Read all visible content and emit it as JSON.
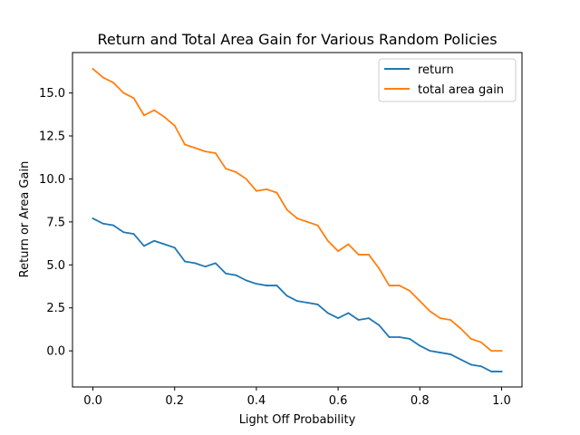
{
  "chart_data": {
    "type": "line",
    "title": "Return and Total Area Gain for Various Random Policies",
    "xlabel": "Light Off Probability",
    "ylabel": "Return or Area Gain",
    "xlim": [
      -0.05,
      1.05
    ],
    "ylim": [
      -2.1,
      17.35
    ],
    "xticks": [
      0.0,
      0.2,
      0.4,
      0.6,
      0.8,
      1.0
    ],
    "xtick_labels": [
      "0.0",
      "0.2",
      "0.4",
      "0.6",
      "0.8",
      "1.0"
    ],
    "yticks": [
      0.0,
      2.5,
      5.0,
      7.5,
      10.0,
      12.5,
      15.0
    ],
    "ytick_labels": [
      "0.0",
      "2.5",
      "5.0",
      "7.5",
      "10.0",
      "12.5",
      "15.0"
    ],
    "grid": false,
    "legend_position": "top-right",
    "x": [
      0.0,
      0.025,
      0.05,
      0.075,
      0.1,
      0.125,
      0.15,
      0.175,
      0.2,
      0.225,
      0.25,
      0.275,
      0.3,
      0.325,
      0.35,
      0.375,
      0.4,
      0.425,
      0.45,
      0.475,
      0.5,
      0.525,
      0.55,
      0.575,
      0.6,
      0.625,
      0.65,
      0.675,
      0.7,
      0.725,
      0.75,
      0.775,
      0.8,
      0.825,
      0.85,
      0.875,
      0.9,
      0.925,
      0.95,
      0.975,
      1.0
    ],
    "series": [
      {
        "name": "return",
        "color": "#1f77b4",
        "values": [
          7.7,
          7.4,
          7.3,
          6.9,
          6.8,
          6.1,
          6.4,
          6.2,
          6.0,
          5.2,
          5.1,
          4.9,
          5.1,
          4.5,
          4.4,
          4.1,
          3.9,
          3.8,
          3.8,
          3.2,
          2.9,
          2.8,
          2.7,
          2.2,
          1.9,
          2.2,
          1.8,
          1.9,
          1.5,
          0.8,
          0.8,
          0.7,
          0.3,
          0.0,
          -0.1,
          -0.2,
          -0.5,
          -0.8,
          -0.9,
          -1.2,
          -1.2
        ]
      },
      {
        "name": "total area gain",
        "color": "#ff7f0e",
        "values": [
          16.4,
          15.9,
          15.6,
          15.0,
          14.7,
          13.7,
          14.0,
          13.6,
          13.1,
          12.0,
          11.8,
          11.6,
          11.5,
          10.6,
          10.4,
          10.0,
          9.3,
          9.4,
          9.2,
          8.2,
          7.7,
          7.5,
          7.3,
          6.4,
          5.8,
          6.2,
          5.6,
          5.6,
          4.8,
          3.8,
          3.8,
          3.5,
          2.9,
          2.3,
          1.9,
          1.8,
          1.3,
          0.7,
          0.5,
          0.0,
          0.0
        ]
      }
    ]
  }
}
